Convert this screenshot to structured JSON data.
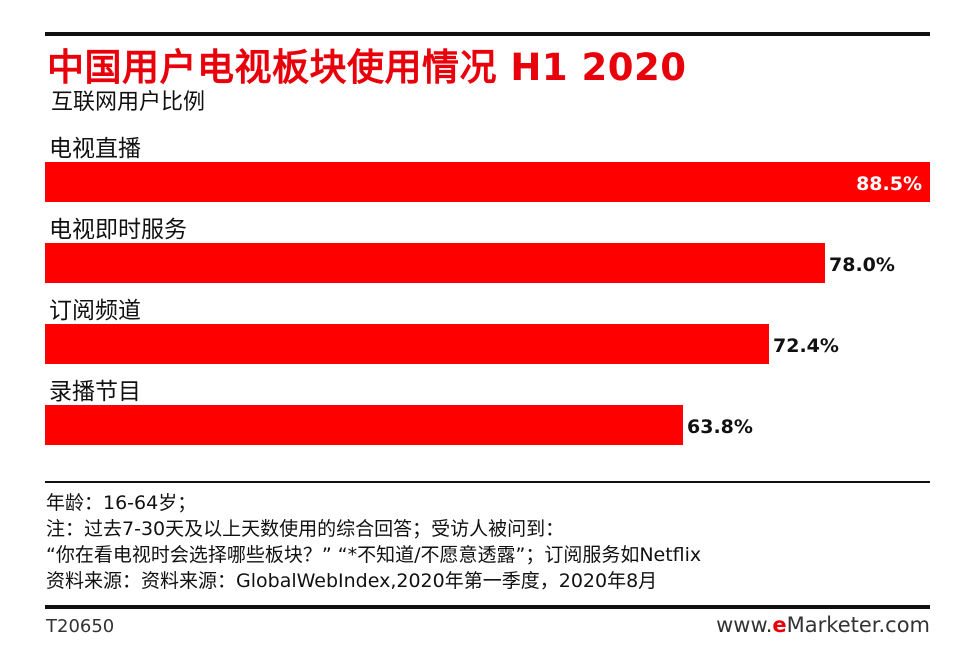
{
  "chart_data": {
    "type": "bar",
    "orientation": "horizontal",
    "title": "中国用户电视板块使用情况 H1 2020",
    "subtitle": "互联网用户比例",
    "categories": [
      "电视直播",
      "电视即时服务",
      "订阅频道",
      "录播节目"
    ],
    "values": [
      88.5,
      78.0,
      72.4,
      63.8
    ],
    "value_labels": [
      "88.5%",
      "78.0%",
      "72.4%",
      "63.8%"
    ],
    "unit": "%",
    "xlim": [
      0,
      88.5
    ],
    "bar_color": "#ff0000",
    "grid": false,
    "legend": "none"
  },
  "notes": [
    "年龄：16-64岁；",
    "注：过去7-30天及以上天数使用的综合回答；受访人被问到：",
    "“你在看电视时会选择哪些板块？” “*不知道/不愿意透露”；订阅服务如Netflix",
    "资料来源：资料来源：GlobalWebIndex,2020年第一季度，2020年8月"
  ],
  "footer": {
    "chart_id": "T20650",
    "brand_prefix": "www.",
    "brand_accent": "e",
    "brand_suffix": "Marketer.com"
  }
}
